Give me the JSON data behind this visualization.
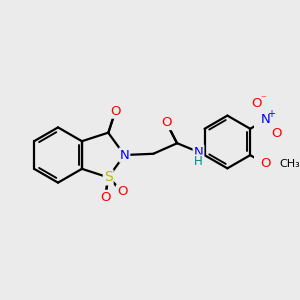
{
  "bg_color": "#ebebeb",
  "bond_color": "#000000",
  "atoms": {
    "S": {
      "color": "#bbbb00",
      "size": 10
    },
    "N": {
      "color": "#0000ff",
      "size": 9.5
    },
    "O": {
      "color": "#ff0000",
      "size": 9.5
    },
    "H": {
      "color": "#008888",
      "size": 8.5
    },
    "C": {
      "color": "#000000",
      "size": 0
    }
  },
  "bond_width": 1.6,
  "dbo": 0.014,
  "figsize": [
    3.0,
    3.0
  ],
  "dpi": 100,
  "xlim": [
    0,
    10
  ],
  "ylim": [
    0,
    10
  ]
}
